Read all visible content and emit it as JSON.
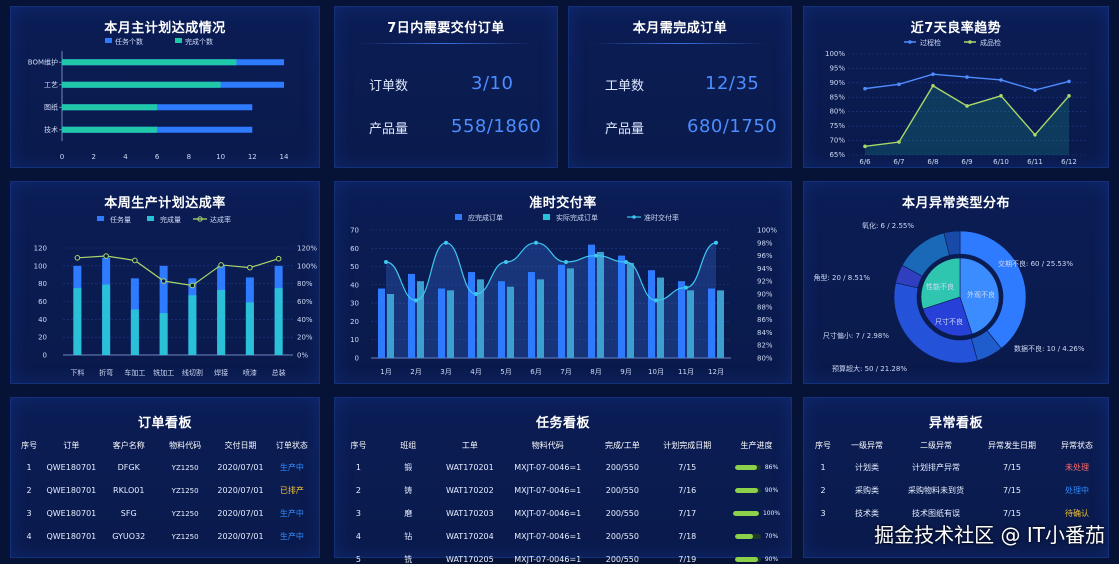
{
  "panels": {
    "plan": {
      "title": "本月主计划达成情况"
    },
    "due7": {
      "title": "7日内需要交付订单",
      "orders_label": "订单数",
      "orders_value": "3/10",
      "qty_label": "产品量",
      "qty_value": "558/1860"
    },
    "month": {
      "title": "本月需完成订单",
      "orders_label": "工单数",
      "orders_value": "12/35",
      "qty_label": "产品量",
      "qty_value": "680/1750"
    },
    "yield": {
      "title": "近7天良率趋势"
    },
    "week": {
      "title": "本周生产计划达成率"
    },
    "ontime": {
      "title": "准时交付率"
    },
    "abnormal": {
      "title": "本月异常类型分布"
    },
    "orderboard": {
      "title": "订单看板"
    },
    "taskboard": {
      "title": "任务看板"
    },
    "exboard": {
      "title": "异常看板"
    }
  },
  "colors": {
    "blue": "#2f7bff",
    "green": "#1fc8a8",
    "teal": "#2ac0d8",
    "lime": "#a6d86a",
    "cyan": "#3ec8f0",
    "value_blue": "#4c8dff"
  },
  "chart_data": [
    {
      "type": "bar",
      "title": "本月主计划达成情况",
      "orientation": "horizontal",
      "categories": [
        "BOM维护",
        "工艺",
        "图纸",
        "技术"
      ],
      "series": [
        {
          "name": "任务个数",
          "values": [
            14,
            14,
            12,
            12
          ]
        },
        {
          "name": "完成个数",
          "values": [
            11,
            10,
            6,
            6
          ]
        }
      ],
      "xlim": [
        0,
        14
      ],
      "xticks": [
        "0",
        "2",
        "4",
        "6",
        "8",
        "10",
        "12",
        "14"
      ],
      "legend": "top"
    },
    {
      "type": "line",
      "title": "近7天良率趋势",
      "categories": [
        "6/6",
        "6/7",
        "6/8",
        "6/9",
        "6/10",
        "6/11",
        "6/12"
      ],
      "series": [
        {
          "name": "过程检",
          "values": [
            88,
            89.5,
            93,
            92,
            91,
            87.5,
            90.5
          ]
        },
        {
          "name": "成品检",
          "values": [
            68,
            69.5,
            89,
            82,
            85.5,
            72,
            85.5
          ]
        }
      ],
      "ylim": [
        65,
        100
      ],
      "yticks": [
        "65%",
        "70%",
        "75%",
        "80%",
        "85%",
        "90%",
        "95%",
        "100%"
      ],
      "legend": "top"
    },
    {
      "type": "bar",
      "title": "本周生产计划达成率",
      "categories": [
        "下料",
        "折弯",
        "车加工",
        "铣加工",
        "线切割",
        "焊接",
        "喷漆",
        "总装"
      ],
      "series": [
        {
          "name": "任务量",
          "values": [
            100,
            109,
            86,
            100,
            86,
            100,
            87,
            100
          ]
        },
        {
          "name": "完成量",
          "values": [
            75,
            79,
            51,
            47,
            67,
            73,
            59,
            75
          ]
        },
        {
          "name": "达成率",
          "values": [
            109,
            111,
            106,
            83,
            78,
            101,
            98,
            108
          ]
        }
      ],
      "ylim": [
        0,
        120
      ],
      "yticks": [
        "0",
        "20",
        "40",
        "60",
        "80",
        "100",
        "120"
      ],
      "y2ticks": [
        "0%",
        "20%",
        "40%",
        "60%",
        "80%",
        "100%",
        "120%"
      ],
      "legend": "top"
    },
    {
      "type": "bar",
      "title": "准时交付率",
      "categories": [
        "1月",
        "2月",
        "3月",
        "4月",
        "5月",
        "6月",
        "7月",
        "8月",
        "9月",
        "10月",
        "11月",
        "12月"
      ],
      "series": [
        {
          "name": "应完成订单",
          "values": [
            38,
            46,
            38,
            47,
            42,
            47,
            51,
            62,
            56,
            48,
            42,
            38
          ]
        },
        {
          "name": "实际完成订单",
          "values": [
            35,
            42,
            37,
            43,
            39,
            43,
            49,
            58,
            52,
            44,
            37,
            37
          ]
        },
        {
          "name": "准时交付率",
          "values": [
            95,
            89,
            98,
            90,
            95,
            98,
            95,
            96,
            95,
            89,
            91,
            98
          ]
        }
      ],
      "ylim": [
        0,
        70
      ],
      "yticks": [
        "0",
        "10",
        "20",
        "30",
        "40",
        "50",
        "60",
        "70"
      ],
      "y2ticks": [
        "80%",
        "82%",
        "84%",
        "86%",
        "88%",
        "90%",
        "92%",
        "94%",
        "96%",
        "98%",
        "100%"
      ],
      "legend": "top"
    },
    {
      "type": "pie",
      "title": "本月异常类型分布",
      "outer": [
        {
          "label": "交期不良: 60 / 25.53%",
          "value": 60
        },
        {
          "label": "数据不良: 10 / 4.26%",
          "value": 10
        },
        {
          "label": "预算超大: 50 / 21.28%",
          "value": 50
        },
        {
          "label": "尺寸偏小: 7 / 2.98%",
          "value": 7
        },
        {
          "label": "角型: 20 / 8.51%",
          "value": 20
        },
        {
          "label": "氧化: 6 / 2.55%",
          "value": 6
        }
      ],
      "inner": [
        {
          "label": "外观不良",
          "value": 45
        },
        {
          "label": "尺寸不良",
          "value": 25
        },
        {
          "label": "性能不良",
          "value": 30
        }
      ]
    }
  ],
  "order_board": {
    "headers": [
      "序号",
      "订单",
      "客户名称",
      "物料代码",
      "交付日期",
      "订单状态"
    ],
    "rows": [
      [
        "1",
        "QWE180701",
        "DFGK",
        "YZ1250",
        "2020/07/01",
        "生产中"
      ],
      [
        "2",
        "QWE180701",
        "RKLO01",
        "YZ1250",
        "2020/07/01",
        "已排产"
      ],
      [
        "3",
        "QWE180701",
        "SFG",
        "YZ1250",
        "2020/07/01",
        "生产中"
      ],
      [
        "4",
        "QWE180701",
        "GYUO32",
        "YZ1250",
        "2020/07/01",
        "生产中"
      ]
    ]
  },
  "task_board": {
    "headers": [
      "序号",
      "班组",
      "工单",
      "物料代码",
      "完成/工单",
      "计划完成日期",
      "生产进度"
    ],
    "rows": [
      [
        "1",
        "锻",
        "WAT170201",
        "MXJT-07-0046=1",
        "200/550",
        "7/15",
        "86%"
      ],
      [
        "2",
        "铸",
        "WAT170202",
        "MXJT-07-0046=1",
        "200/550",
        "7/16",
        "90%"
      ],
      [
        "3",
        "磨",
        "WAT170203",
        "MXJT-07-0046=1",
        "200/550",
        "7/17",
        "100%"
      ],
      [
        "4",
        "钻",
        "WAT170204",
        "MXJT-07-0046=1",
        "200/550",
        "7/18",
        "70%"
      ],
      [
        "5",
        "铣",
        "WAT170205",
        "MXJT-07-0046=1",
        "200/550",
        "7/19",
        "90%"
      ]
    ],
    "progress": [
      0.86,
      0.9,
      1.0,
      0.7,
      0.9
    ]
  },
  "ex_board": {
    "headers": [
      "序号",
      "一级异常",
      "二级异常",
      "异常发生日期",
      "异常状态"
    ],
    "rows": [
      [
        "1",
        "计划类",
        "计划排产异常",
        "7/15",
        "未处理"
      ],
      [
        "2",
        "采购类",
        "采购物料未到货",
        "7/15",
        "处理中"
      ],
      [
        "3",
        "技术类",
        "技术图纸有误",
        "7/15",
        "待确认"
      ]
    ]
  },
  "watermark": "掘金技术社区 @ IT小番茄"
}
